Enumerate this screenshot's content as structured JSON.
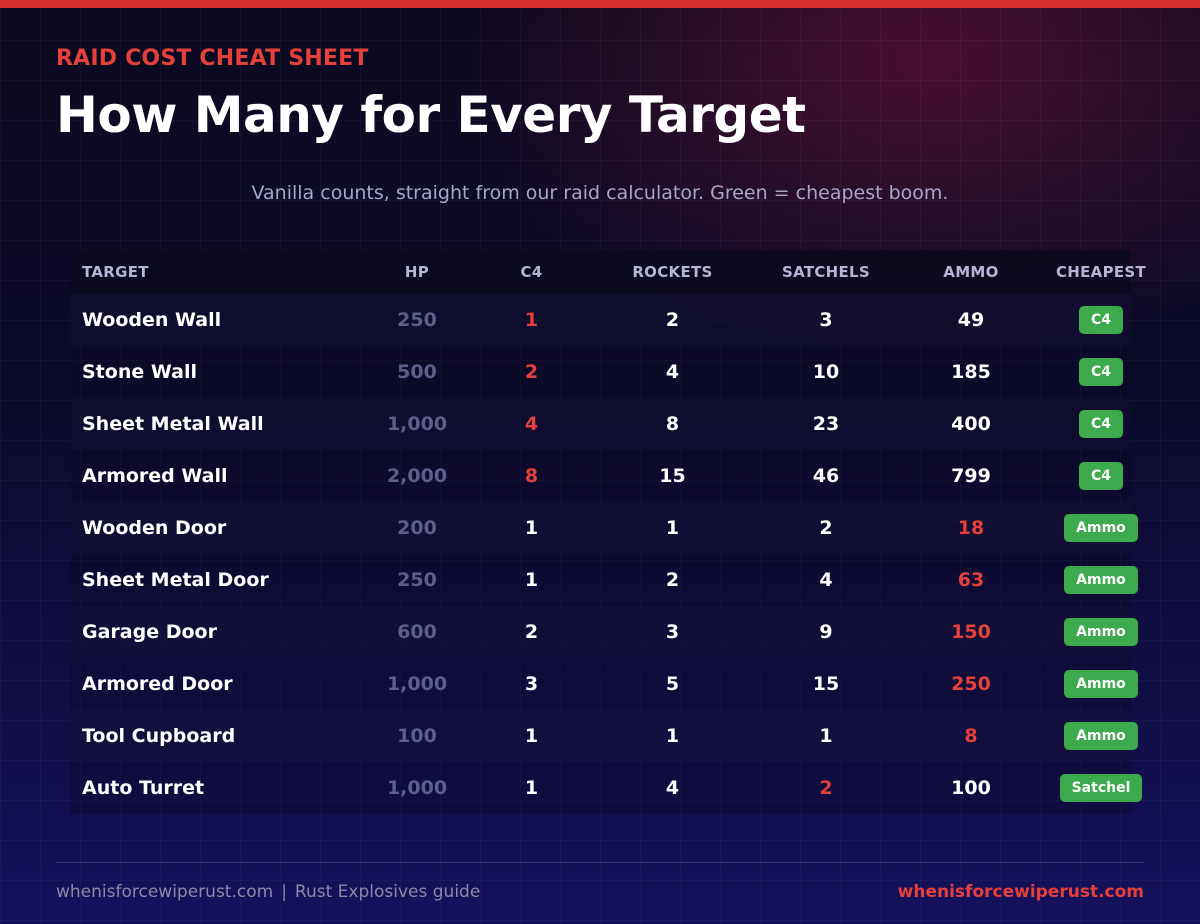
{
  "header": {
    "eyebrow": "RAID COST CHEAT SHEET",
    "title": "How Many for Every Target",
    "subtitle": "Vanilla counts, straight from our raid calculator. Green = cheapest boom."
  },
  "table": {
    "columns": [
      "TARGET",
      "HP",
      "C4",
      "ROCKETS",
      "SATCHELS",
      "AMMO",
      "CHEAPEST"
    ],
    "rows": [
      {
        "target": "Wooden Wall",
        "hp": "250",
        "c4": "1",
        "rockets": "2",
        "satchels": "3",
        "ammo": "49",
        "cheapest": "C4",
        "highlight": "c4"
      },
      {
        "target": "Stone Wall",
        "hp": "500",
        "c4": "2",
        "rockets": "4",
        "satchels": "10",
        "ammo": "185",
        "cheapest": "C4",
        "highlight": "c4"
      },
      {
        "target": "Sheet Metal Wall",
        "hp": "1,000",
        "c4": "4",
        "rockets": "8",
        "satchels": "23",
        "ammo": "400",
        "cheapest": "C4",
        "highlight": "c4"
      },
      {
        "target": "Armored Wall",
        "hp": "2,000",
        "c4": "8",
        "rockets": "15",
        "satchels": "46",
        "ammo": "799",
        "cheapest": "C4",
        "highlight": "c4"
      },
      {
        "target": "Wooden Door",
        "hp": "200",
        "c4": "1",
        "rockets": "1",
        "satchels": "2",
        "ammo": "18",
        "cheapest": "Ammo",
        "highlight": "ammo"
      },
      {
        "target": "Sheet Metal Door",
        "hp": "250",
        "c4": "1",
        "rockets": "2",
        "satchels": "4",
        "ammo": "63",
        "cheapest": "Ammo",
        "highlight": "ammo"
      },
      {
        "target": "Garage Door",
        "hp": "600",
        "c4": "2",
        "rockets": "3",
        "satchels": "9",
        "ammo": "150",
        "cheapest": "Ammo",
        "highlight": "ammo"
      },
      {
        "target": "Armored Door",
        "hp": "1,000",
        "c4": "3",
        "rockets": "5",
        "satchels": "15",
        "ammo": "250",
        "cheapest": "Ammo",
        "highlight": "ammo"
      },
      {
        "target": "Tool Cupboard",
        "hp": "100",
        "c4": "1",
        "rockets": "1",
        "satchels": "1",
        "ammo": "8",
        "cheapest": "Ammo",
        "highlight": "ammo"
      },
      {
        "target": "Auto Turret",
        "hp": "1,000",
        "c4": "1",
        "rockets": "4",
        "satchels": "2",
        "ammo": "100",
        "cheapest": "Satchel",
        "highlight": "satchels"
      }
    ]
  },
  "footer": {
    "site": "whenisforcewiperust.com",
    "separator": "|",
    "guide": "Rust Explosives guide",
    "brand": "whenisforcewiperust.com"
  },
  "colors": {
    "accent_red": "#e5403a",
    "badge_green": "#3daa4d",
    "top_bar": "#d6322f"
  }
}
